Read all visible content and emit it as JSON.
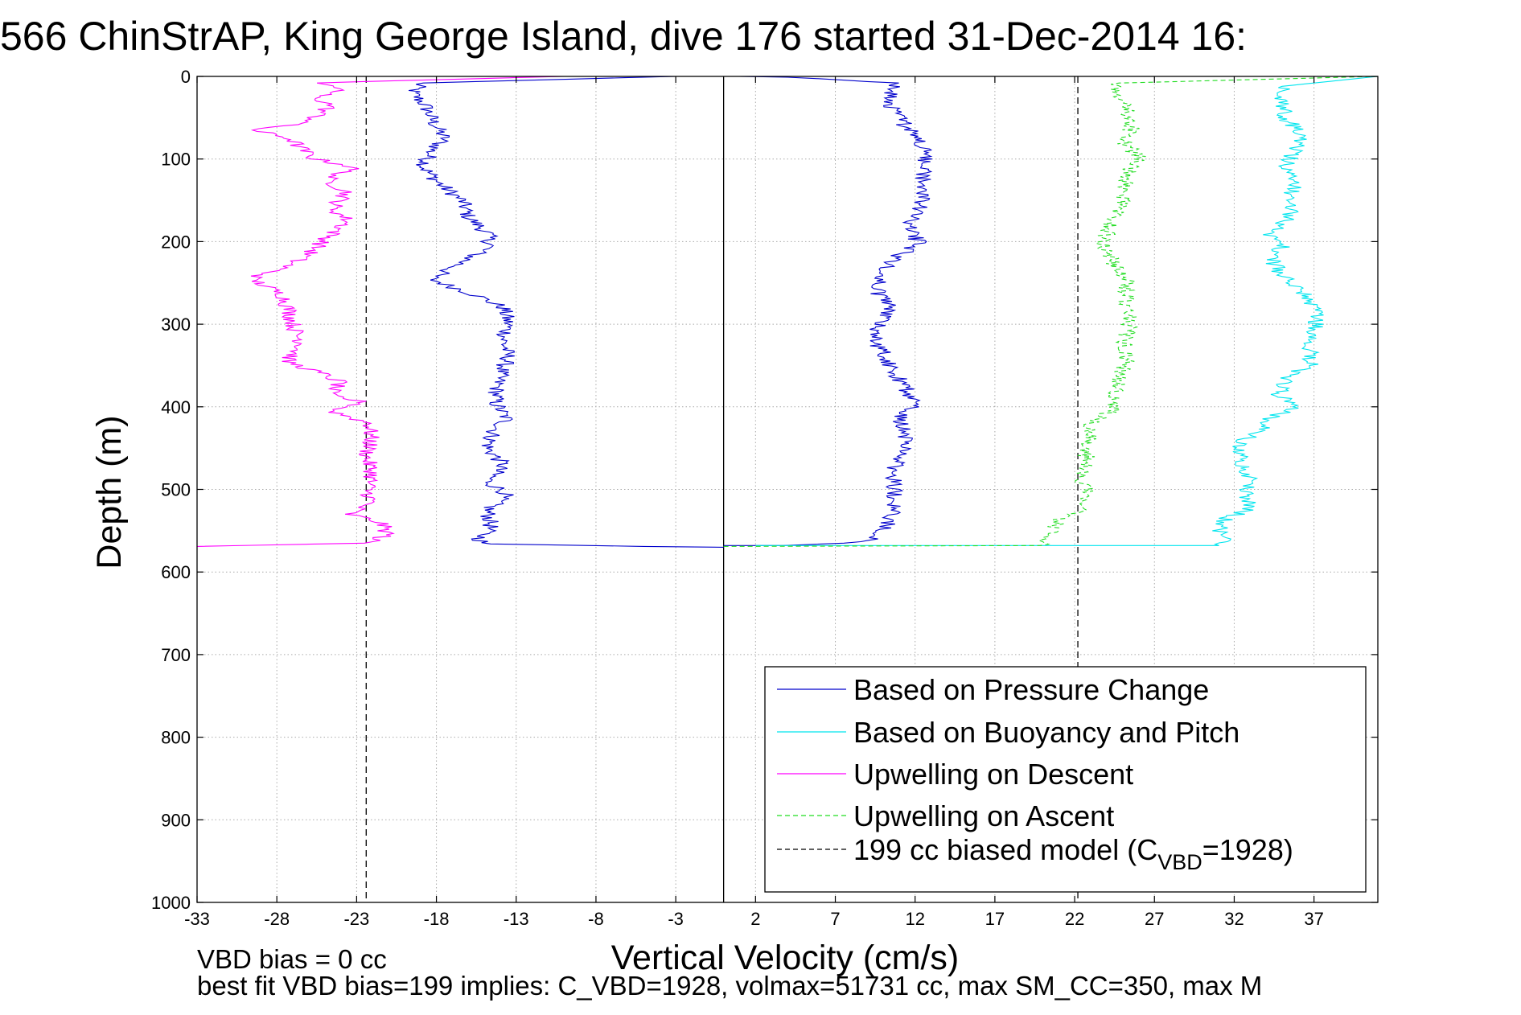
{
  "chart_data": {
    "type": "line",
    "title": "566 ChinStrAP, King George Island, dive 176 started 31-Dec-2014 16:",
    "xlabel": "Vertical Velocity (cm/s)",
    "ylabel": "Depth (m)",
    "xlim": [
      -33,
      41
    ],
    "ylim": [
      0,
      1000
    ],
    "y_reversed": true,
    "grid": true,
    "legend_position": "lower-right",
    "xticks": [
      -33,
      -28,
      -23,
      -18,
      -13,
      -8,
      -3,
      2,
      7,
      12,
      17,
      22,
      27,
      32,
      37
    ],
    "yticks": [
      0,
      100,
      200,
      300,
      400,
      500,
      600,
      700,
      800,
      900,
      1000
    ],
    "zero_line_x": 0,
    "series": [
      {
        "name": "Based on Pressure Change",
        "color": "#0000cc",
        "style": "solid",
        "descent": [
          [
            -3,
            0
          ],
          [
            -19,
            8
          ],
          [
            -19.5,
            20
          ],
          [
            -18.7,
            35
          ],
          [
            -18.2,
            55
          ],
          [
            -17.5,
            75
          ],
          [
            -18.3,
            90
          ],
          [
            -18.8,
            110
          ],
          [
            -17.8,
            130
          ],
          [
            -16.4,
            150
          ],
          [
            -16,
            170
          ],
          [
            -14.8,
            190
          ],
          [
            -14.6,
            205
          ],
          [
            -15.5,
            215
          ],
          [
            -16.8,
            230
          ],
          [
            -18.4,
            245
          ],
          [
            -15.5,
            265
          ],
          [
            -13.8,
            280
          ],
          [
            -13.5,
            300
          ],
          [
            -13.8,
            320
          ],
          [
            -13.5,
            340
          ],
          [
            -14,
            360
          ],
          [
            -14.2,
            375
          ],
          [
            -14.3,
            395
          ],
          [
            -13.6,
            415
          ],
          [
            -14.4,
            430
          ],
          [
            -14.8,
            450
          ],
          [
            -13.8,
            470
          ],
          [
            -14.8,
            490
          ],
          [
            -13.6,
            505
          ],
          [
            -14.8,
            525
          ],
          [
            -14.6,
            545
          ],
          [
            -15.3,
            560
          ],
          [
            -15,
            566
          ],
          [
            -5,
            569
          ],
          [
            0,
            570
          ]
        ],
        "ascent": [
          [
            0,
            568
          ],
          [
            4,
            568
          ],
          [
            8,
            565
          ],
          [
            9.5,
            560
          ],
          [
            10.2,
            545
          ],
          [
            10.8,
            525
          ],
          [
            10.7,
            500
          ],
          [
            10.6,
            480
          ],
          [
            11.1,
            460
          ],
          [
            11.4,
            430
          ],
          [
            11,
            410
          ],
          [
            12,
            400
          ],
          [
            11.5,
            380
          ],
          [
            10.8,
            360
          ],
          [
            10.2,
            340
          ],
          [
            9.4,
            320
          ],
          [
            9.8,
            300
          ],
          [
            10.5,
            280
          ],
          [
            9.6,
            260
          ],
          [
            9.9,
            235
          ],
          [
            10.8,
            220
          ],
          [
            12.2,
            200
          ],
          [
            11.5,
            180
          ],
          [
            12.2,
            160
          ],
          [
            12.6,
            140
          ],
          [
            12.5,
            120
          ],
          [
            12.6,
            100
          ],
          [
            12.4,
            80
          ],
          [
            11.4,
            60
          ],
          [
            10.6,
            40
          ],
          [
            10.5,
            20
          ],
          [
            11,
            8
          ],
          [
            4,
            1
          ],
          [
            1,
            0
          ]
        ]
      },
      {
        "name": "Based on Buoyancy and Pitch",
        "color": "#00e5ee",
        "style": "solid",
        "descent": [],
        "ascent": [
          [
            2,
            568
          ],
          [
            31,
            568
          ],
          [
            31.8,
            560
          ],
          [
            31,
            550
          ],
          [
            31.5,
            535
          ],
          [
            33,
            525
          ],
          [
            32.8,
            505
          ],
          [
            33,
            485
          ],
          [
            32.5,
            465
          ],
          [
            32.3,
            445
          ],
          [
            33.5,
            430
          ],
          [
            34.5,
            410
          ],
          [
            36,
            400
          ],
          [
            34.8,
            385
          ],
          [
            35.2,
            365
          ],
          [
            36.8,
            350
          ],
          [
            36.8,
            320
          ],
          [
            37.2,
            300
          ],
          [
            36.8,
            270
          ],
          [
            35.4,
            250
          ],
          [
            34.4,
            225
          ],
          [
            35,
            205
          ],
          [
            34.2,
            190
          ],
          [
            35.6,
            170
          ],
          [
            35.4,
            150
          ],
          [
            35.8,
            130
          ],
          [
            35.2,
            110
          ],
          [
            35.8,
            90
          ],
          [
            36.3,
            70
          ],
          [
            35.2,
            50
          ],
          [
            35,
            30
          ],
          [
            35,
            12
          ],
          [
            41,
            0
          ]
        ]
      },
      {
        "name": "Upwelling on Descent",
        "color": "#ff00ff",
        "style": "solid",
        "descent": [
          [
            -10,
            0
          ],
          [
            -26,
            8
          ],
          [
            -23.8,
            15
          ],
          [
            -25.6,
            25
          ],
          [
            -24.6,
            35
          ],
          [
            -25.3,
            45
          ],
          [
            -26,
            55
          ],
          [
            -29.5,
            65
          ],
          [
            -27.2,
            75
          ],
          [
            -26.3,
            90
          ],
          [
            -25.6,
            100
          ],
          [
            -23.1,
            110
          ],
          [
            -24.9,
            125
          ],
          [
            -23.6,
            140
          ],
          [
            -24.5,
            160
          ],
          [
            -23.5,
            175
          ],
          [
            -24.8,
            195
          ],
          [
            -26,
            215
          ],
          [
            -27.4,
            230
          ],
          [
            -29.6,
            245
          ],
          [
            -27.6,
            265
          ],
          [
            -27.2,
            285
          ],
          [
            -26.9,
            305
          ],
          [
            -26.4,
            325
          ],
          [
            -27.4,
            345
          ],
          [
            -25.2,
            360
          ],
          [
            -24,
            370
          ],
          [
            -24.8,
            385
          ],
          [
            -22.5,
            395
          ],
          [
            -24.6,
            405
          ],
          [
            -22.2,
            420
          ],
          [
            -22.1,
            440
          ],
          [
            -22.4,
            460
          ],
          [
            -22,
            480
          ],
          [
            -22.3,
            500
          ],
          [
            -22.1,
            515
          ],
          [
            -23.5,
            530
          ],
          [
            -21.5,
            540
          ],
          [
            -21,
            555
          ],
          [
            -22.5,
            565
          ],
          [
            -33,
            569
          ]
        ],
        "ascent": []
      },
      {
        "name": "Upwelling on Ascent",
        "color": "#22dd22",
        "style": "dashed",
        "descent": [],
        "ascent": [
          [
            0,
            569
          ],
          [
            20,
            568
          ],
          [
            20.6,
            555
          ],
          [
            20.8,
            540
          ],
          [
            22.2,
            525
          ],
          [
            22.8,
            505
          ],
          [
            22.5,
            485
          ],
          [
            22.7,
            465
          ],
          [
            22.8,
            445
          ],
          [
            23,
            420
          ],
          [
            24.3,
            405
          ],
          [
            24.6,
            385
          ],
          [
            24.8,
            365
          ],
          [
            25.3,
            345
          ],
          [
            25.1,
            325
          ],
          [
            25.4,
            305
          ],
          [
            25.3,
            285
          ],
          [
            25.2,
            265
          ],
          [
            25.3,
            245
          ],
          [
            24.4,
            225
          ],
          [
            23.8,
            205
          ],
          [
            24.2,
            185
          ],
          [
            24.7,
            160
          ],
          [
            25.2,
            140
          ],
          [
            25.1,
            120
          ],
          [
            26.2,
            100
          ],
          [
            25.1,
            80
          ],
          [
            25.6,
            60
          ],
          [
            25.3,
            40
          ],
          [
            24.8,
            20
          ],
          [
            24.8,
            8
          ],
          [
            41,
            0
          ]
        ]
      },
      {
        "name": "199 cc biased model (C",
        "name_subscript": "VBD",
        "name_suffix": "=1928)",
        "color": "#000000",
        "style": "dashed",
        "vertical_lines_x": [
          -22.4,
          22.2
        ]
      }
    ]
  },
  "footer": {
    "line1": "VBD bias = 0 cc",
    "line2": "best fit VBD bias=199 implies: C_VBD=1928, volmax=51731 cc, max SM_CC=350, max M"
  }
}
